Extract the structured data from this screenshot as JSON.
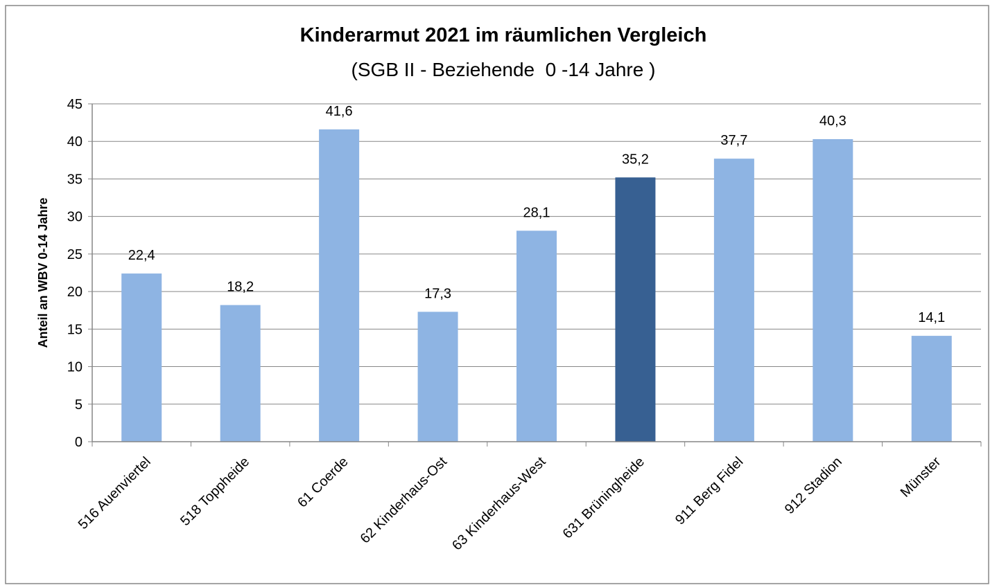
{
  "chart_data": {
    "type": "bar",
    "title": "Kinderarmut 2021 im räumlichen Vergleich",
    "subtitle": "(SGB II - Beziehende  0 -14 Jahre )",
    "y_label": "Anteil an WBV 0-14 Jahre",
    "categories": [
      "516 Auenviertel",
      "518 Toppheide",
      "61 Coerde",
      "62 Kinderhaus-Ost",
      "63 Kinderhaus-West",
      "631 Brüningheide",
      "911 Berg Fidel",
      "912 Stadion",
      "Münster"
    ],
    "values": [
      22.4,
      18.2,
      41.6,
      17.3,
      28.1,
      35.2,
      37.7,
      40.3,
      14.1
    ],
    "value_labels": [
      "22,4",
      "18,2",
      "41,6",
      "17,3",
      "28,1",
      "35,2",
      "37,7",
      "40,3",
      "14,1"
    ],
    "colors": [
      "#8eb4e3",
      "#8eb4e3",
      "#8eb4e3",
      "#8eb4e3",
      "#8eb4e3",
      "#376092",
      "#8eb4e3",
      "#8eb4e3",
      "#8eb4e3"
    ],
    "ylim": [
      0,
      45
    ],
    "yticks": [
      0,
      5,
      10,
      15,
      20,
      25,
      30,
      35,
      40,
      45
    ],
    "grid": true
  }
}
